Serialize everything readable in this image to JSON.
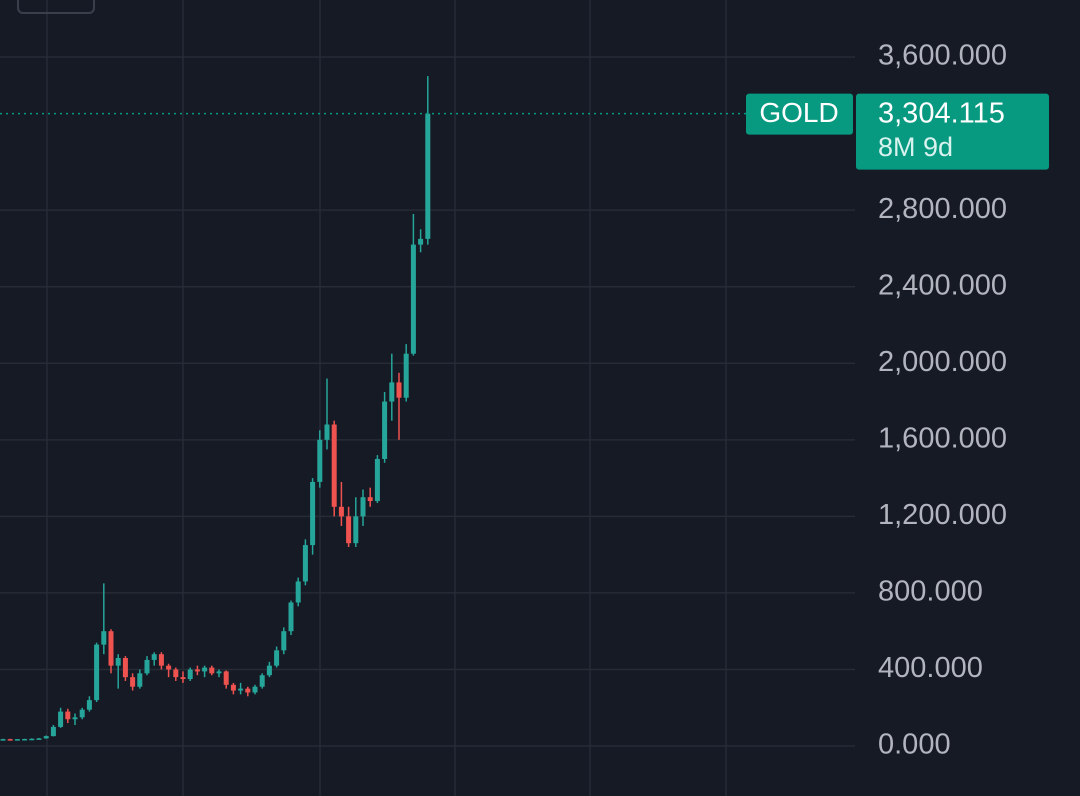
{
  "chart_data": {
    "type": "candlestick",
    "open": [
      35,
      36,
      35,
      36,
      37,
      38,
      40,
      52,
      100,
      180,
      140,
      150,
      190,
      240,
      530,
      600,
      420,
      460,
      360,
      310,
      380,
      450,
      480,
      420,
      400,
      360,
      350,
      400,
      390,
      410,
      380,
      390,
      320,
      290,
      300,
      280,
      310,
      370,
      420,
      500,
      600,
      750,
      860,
      1050,
      1380,
      1600,
      1680,
      1250,
      1200,
      1060,
      1200,
      1300,
      1280,
      1500,
      1800,
      1900,
      1820,
      2050,
      2620,
      2650
    ],
    "high": [
      38,
      38,
      37,
      38,
      40,
      42,
      55,
      110,
      200,
      195,
      170,
      200,
      260,
      540,
      850,
      610,
      480,
      470,
      380,
      400,
      470,
      490,
      490,
      430,
      410,
      390,
      410,
      420,
      420,
      420,
      400,
      395,
      330,
      330,
      310,
      320,
      380,
      440,
      520,
      620,
      760,
      880,
      1080,
      1400,
      1650,
      1920,
      1700,
      1380,
      1250,
      1300,
      1340,
      1350,
      1520,
      1850,
      2050,
      1950,
      2100,
      2780,
      2700,
      3500
    ],
    "low": [
      33,
      34,
      33,
      34,
      35,
      36,
      38,
      50,
      95,
      120,
      110,
      140,
      180,
      230,
      480,
      380,
      300,
      340,
      290,
      300,
      370,
      420,
      400,
      360,
      340,
      330,
      340,
      370,
      360,
      370,
      360,
      300,
      270,
      270,
      260,
      270,
      300,
      360,
      410,
      480,
      580,
      730,
      840,
      1000,
      1350,
      1550,
      1200,
      1150,
      1040,
      1040,
      1150,
      1250,
      1270,
      1480,
      1700,
      1600,
      1800,
      2040,
      2580,
      2620
    ],
    "close": [
      36,
      35,
      36,
      37,
      38,
      40,
      52,
      100,
      180,
      140,
      150,
      190,
      240,
      530,
      600,
      420,
      460,
      360,
      310,
      380,
      450,
      480,
      420,
      400,
      360,
      350,
      400,
      390,
      410,
      380,
      390,
      320,
      290,
      300,
      280,
      310,
      370,
      420,
      500,
      600,
      750,
      860,
      1050,
      1380,
      1600,
      1680,
      1250,
      1200,
      1060,
      1200,
      1300,
      1280,
      1500,
      1800,
      1900,
      1820,
      2050,
      2620,
      2650,
      3304.115
    ],
    "up_color": "#26a69a",
    "down_color": "#ef5350",
    "ylim": [
      -261,
      3898
    ],
    "yticks": [
      {
        "value": 0,
        "label": "0.000"
      },
      {
        "value": 400,
        "label": "400.000"
      },
      {
        "value": 800,
        "label": "800.000"
      },
      {
        "value": 1200,
        "label": "1,200.000"
      },
      {
        "value": 1600,
        "label": "1,600.000"
      },
      {
        "value": 2000,
        "label": "2,000.000"
      },
      {
        "value": 2400,
        "label": "2,400.000"
      },
      {
        "value": 2800,
        "label": "2,800.000"
      },
      {
        "value": 3600,
        "label": "3,600.000"
      }
    ],
    "grid": true,
    "price_tag": {
      "symbol": "GOLD",
      "value": 3304.115,
      "label": "3,304.115",
      "countdown": "8M 9d",
      "color": "#089981"
    }
  }
}
